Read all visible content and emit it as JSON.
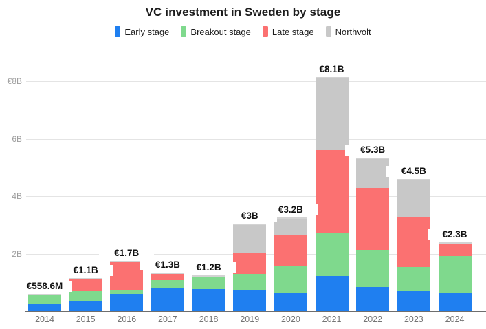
{
  "chart_data": {
    "type": "bar",
    "stacked": true,
    "title": "VC investment in Sweden by stage",
    "unit": "EUR billions",
    "categories": [
      "2014",
      "2015",
      "2016",
      "2017",
      "2018",
      "2019",
      "2020",
      "2021",
      "2022",
      "2023",
      "2024"
    ],
    "series": [
      {
        "name": "Early stage",
        "color": "#1f7ff0",
        "values": [
          0.26,
          0.36,
          0.6,
          0.8,
          0.77,
          0.72,
          0.65,
          1.22,
          0.84,
          0.69,
          0.62
        ]
      },
      {
        "name": "Breakout stage",
        "color": "#7fd98d",
        "values": [
          0.3,
          0.33,
          0.15,
          0.28,
          0.43,
          0.58,
          0.93,
          1.51,
          1.29,
          0.84,
          1.29
        ]
      },
      {
        "name": "Late stage",
        "color": "#fb7171",
        "values": [
          0.0,
          0.41,
          0.95,
          0.22,
          0.0,
          0.72,
          1.08,
          2.88,
          2.16,
          1.73,
          0.43
        ]
      },
      {
        "name": "Northvolt",
        "color": "#c8c8c8",
        "values": [
          0.0,
          0.0,
          0.0,
          0.0,
          0.0,
          0.98,
          0.55,
          2.49,
          1.01,
          1.29,
          0.0
        ]
      }
    ],
    "total_labels": [
      "€558.6M",
      "€1.1B",
      "€1.7B",
      "€1.3B",
      "€1.2B",
      "€3B",
      "€3.2B",
      "€8.1B",
      "€5.3B",
      "€4.5B",
      "€2.3B"
    ],
    "y_ticks": [
      {
        "label": "€8B",
        "value": 8
      },
      {
        "label": "6B",
        "value": 6
      },
      {
        "label": "4B",
        "value": 4
      },
      {
        "label": "2B",
        "value": 2
      }
    ],
    "ylim": [
      0,
      8.5
    ],
    "grid": "horizontal",
    "legend_position": "top"
  },
  "colors": {
    "background": "#ffffff",
    "grid": "#e4e4e4",
    "baseline": "#6e6e6e",
    "y_tick_text": "#9e9e9e",
    "x_tick_text": "#757575",
    "bar_top_cap": "#d3d3d3",
    "label_text": "#111111"
  }
}
